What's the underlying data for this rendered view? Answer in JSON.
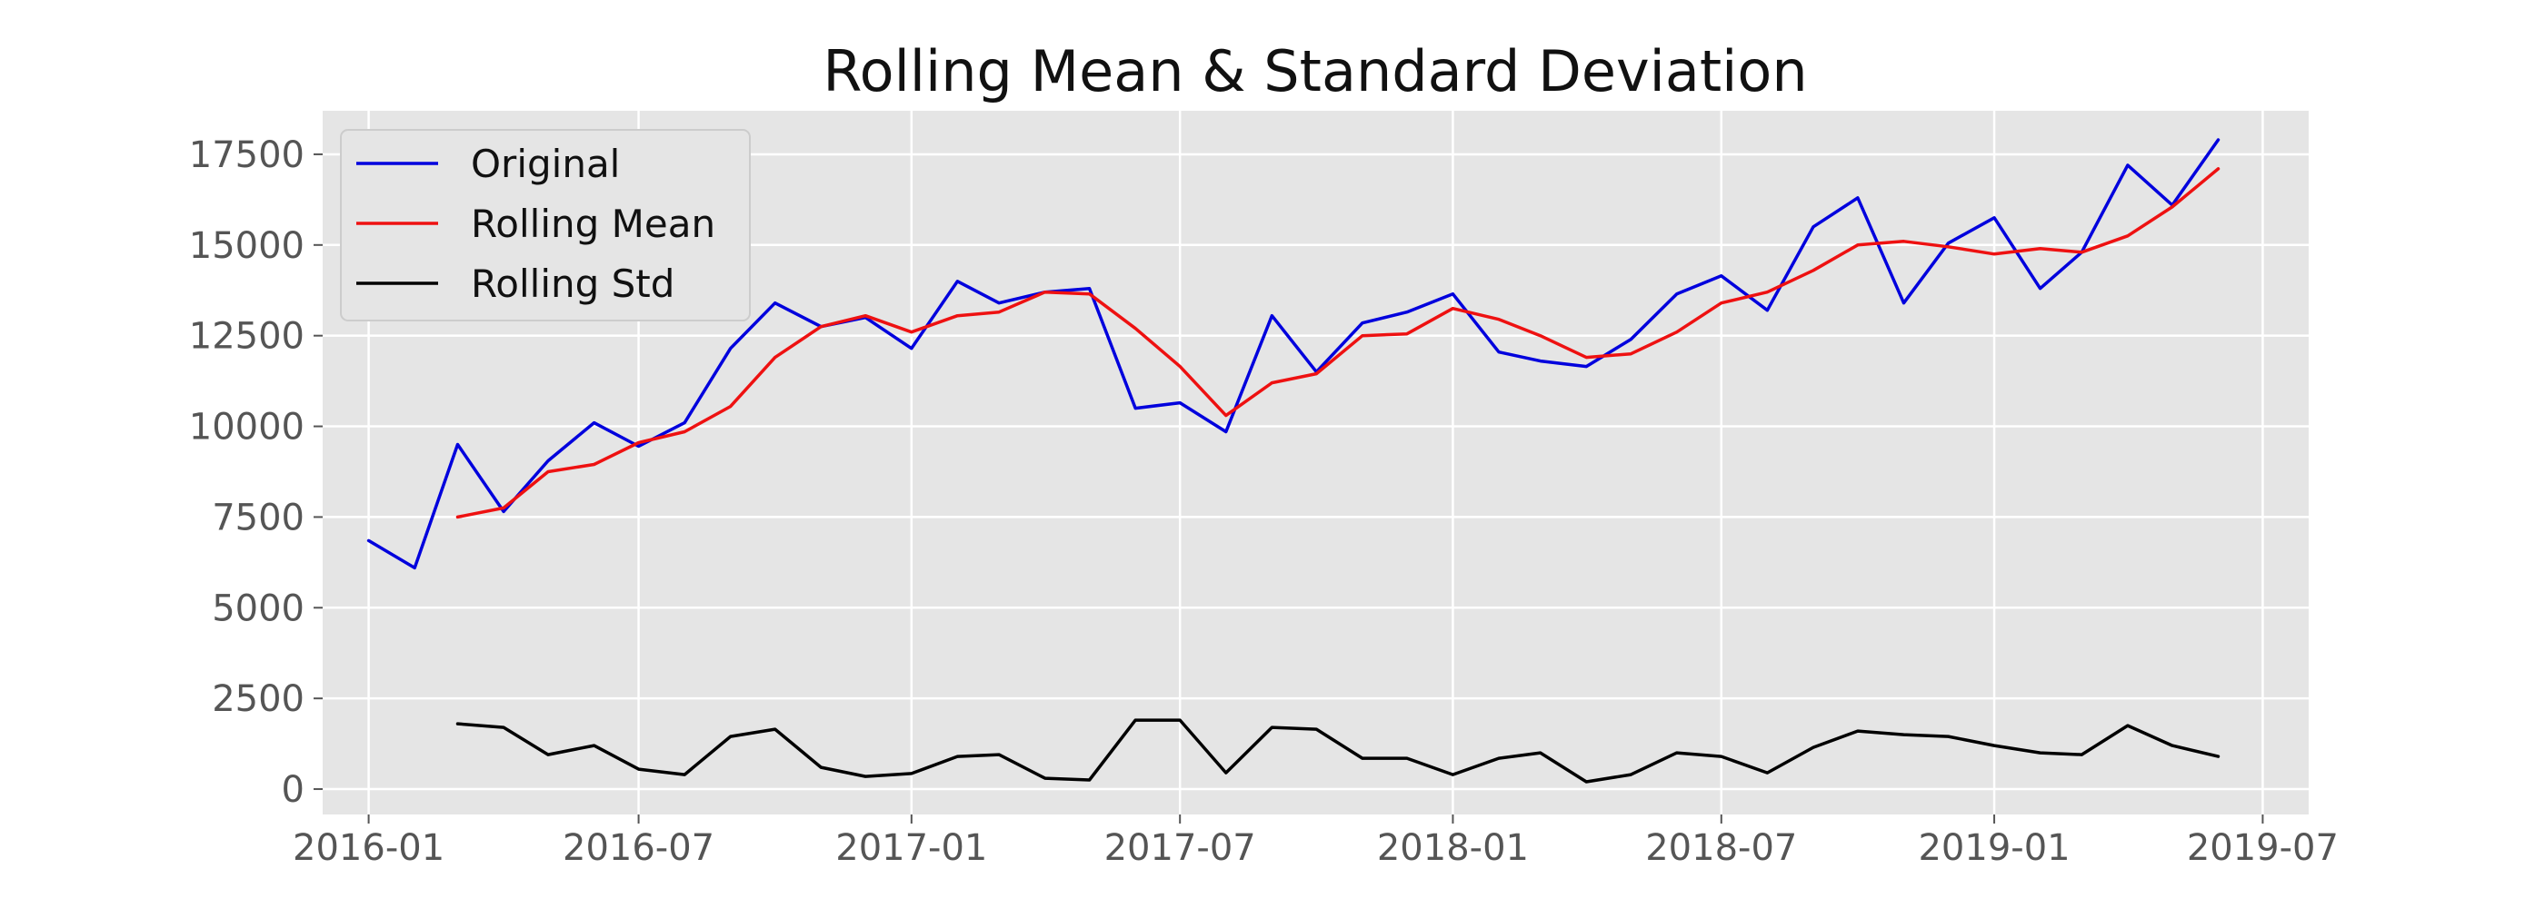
{
  "chart_data": {
    "type": "line",
    "title": "Rolling Mean & Standard Deviation",
    "xlabel": "",
    "ylabel": "",
    "x_ticks": [
      "2016-01",
      "2016-07",
      "2017-01",
      "2017-07",
      "2018-01",
      "2018-07",
      "2019-01",
      "2019-07"
    ],
    "y_ticks": [
      "0",
      "2500",
      "5000",
      "7500",
      "10000",
      "12500",
      "15000",
      "17500"
    ],
    "ylim": [
      -700,
      18700
    ],
    "xlim": [
      "2015-12-01",
      "2019-08-01"
    ],
    "grid": true,
    "legend": "top-left",
    "x": [
      "2016-01",
      "2016-02",
      "2016-03",
      "2016-04",
      "2016-05",
      "2016-06",
      "2016-07",
      "2016-08",
      "2016-09",
      "2016-10",
      "2016-11",
      "2016-12",
      "2017-01",
      "2017-02",
      "2017-03",
      "2017-04",
      "2017-05",
      "2017-06",
      "2017-07",
      "2017-08",
      "2017-09",
      "2017-10",
      "2017-11",
      "2017-12",
      "2018-01",
      "2018-02",
      "2018-03",
      "2018-04",
      "2018-05",
      "2018-06",
      "2018-07",
      "2018-08",
      "2018-09",
      "2018-10",
      "2018-11",
      "2018-12",
      "2019-01",
      "2019-02",
      "2019-03",
      "2019-04",
      "2019-05",
      "2019-06"
    ],
    "series": [
      {
        "name": "Original",
        "color": "#0000dd",
        "values": [
          6850,
          6100,
          9500,
          7650,
          9050,
          10100,
          9450,
          10100,
          12150,
          13400,
          12750,
          13000,
          12150,
          14000,
          13400,
          13700,
          13800,
          10500,
          10650,
          9850,
          13050,
          11500,
          12850,
          13150,
          13650,
          12050,
          11800,
          11650,
          12400,
          13650,
          14150,
          13200,
          15500,
          16300,
          13400,
          15050,
          15750,
          13800,
          14800,
          17200,
          16100,
          17900
        ]
      },
      {
        "name": "Rolling Mean",
        "color": "#ee1111",
        "values": [
          null,
          null,
          7500,
          7750,
          8750,
          8950,
          9550,
          9850,
          10550,
          11900,
          12750,
          13050,
          12600,
          13050,
          13150,
          13700,
          13650,
          12700,
          11650,
          10300,
          11200,
          11450,
          12500,
          12550,
          13250,
          12950,
          12500,
          11900,
          12000,
          12600,
          13400,
          13700,
          14300,
          15000,
          15100,
          14950,
          14750,
          14900,
          14800,
          15250,
          16050,
          17100
        ]
      },
      {
        "name": "Rolling Std",
        "color": "#000000",
        "values": [
          null,
          null,
          1800,
          1700,
          950,
          1200,
          550,
          400,
          1450,
          1650,
          600,
          350,
          430,
          900,
          950,
          300,
          250,
          1900,
          1900,
          450,
          1700,
          1650,
          850,
          850,
          400,
          850,
          1000,
          200,
          400,
          1000,
          900,
          450,
          1150,
          1600,
          1500,
          1450,
          1200,
          1000,
          950,
          1750,
          1200,
          900
        ]
      }
    ]
  }
}
